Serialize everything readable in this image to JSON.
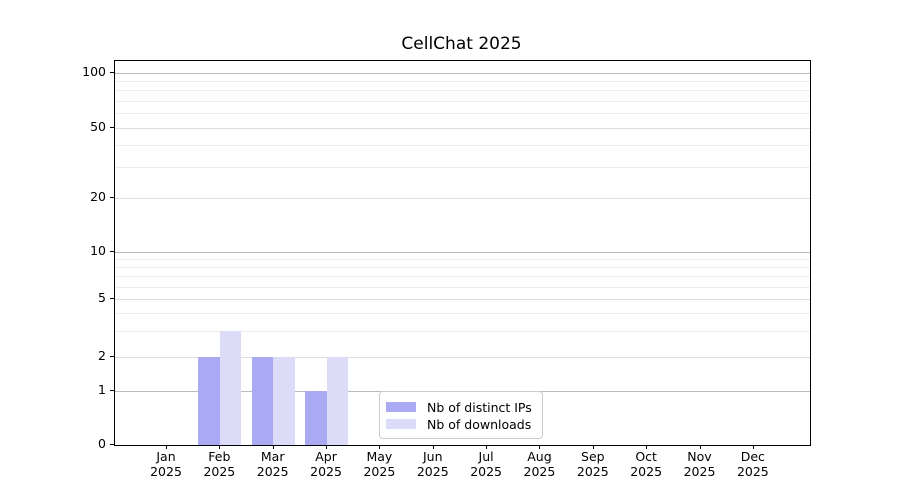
{
  "chart_data": {
    "type": "bar",
    "title": "CellChat 2025",
    "categories": [
      "Jan",
      "Feb",
      "Mar",
      "Apr",
      "May",
      "Jun",
      "Jul",
      "Aug",
      "Sep",
      "Oct",
      "Nov",
      "Dec"
    ],
    "category_year": "2025",
    "series": [
      {
        "name": "Nb of distinct IPs",
        "color": "#a9a9f4",
        "values": [
          0,
          2,
          2,
          1,
          0,
          0,
          0,
          0,
          0,
          0,
          0,
          0
        ]
      },
      {
        "name": "Nb of downloads",
        "color": "#dcdcf8",
        "values": [
          0,
          3,
          2,
          2,
          0,
          0,
          0,
          0,
          0,
          0,
          0,
          0
        ]
      }
    ],
    "yticks": [
      0,
      1,
      2,
      5,
      10,
      20,
      50,
      100
    ],
    "ylim": [
      0,
      110
    ],
    "yscale": "log-like with ticks 0,1,2,5,10,20,50,100",
    "grid": "horizontal; darker lines at decades 1,10,100; faint log minors",
    "legend_position": "inside plot, lower middle",
    "colors": {
      "axis": "#000000",
      "gridline_decade": "#bbbbbb",
      "gridline_major": "#dedede",
      "gridline_minor": "#ededed",
      "background": "#ffffff"
    }
  }
}
